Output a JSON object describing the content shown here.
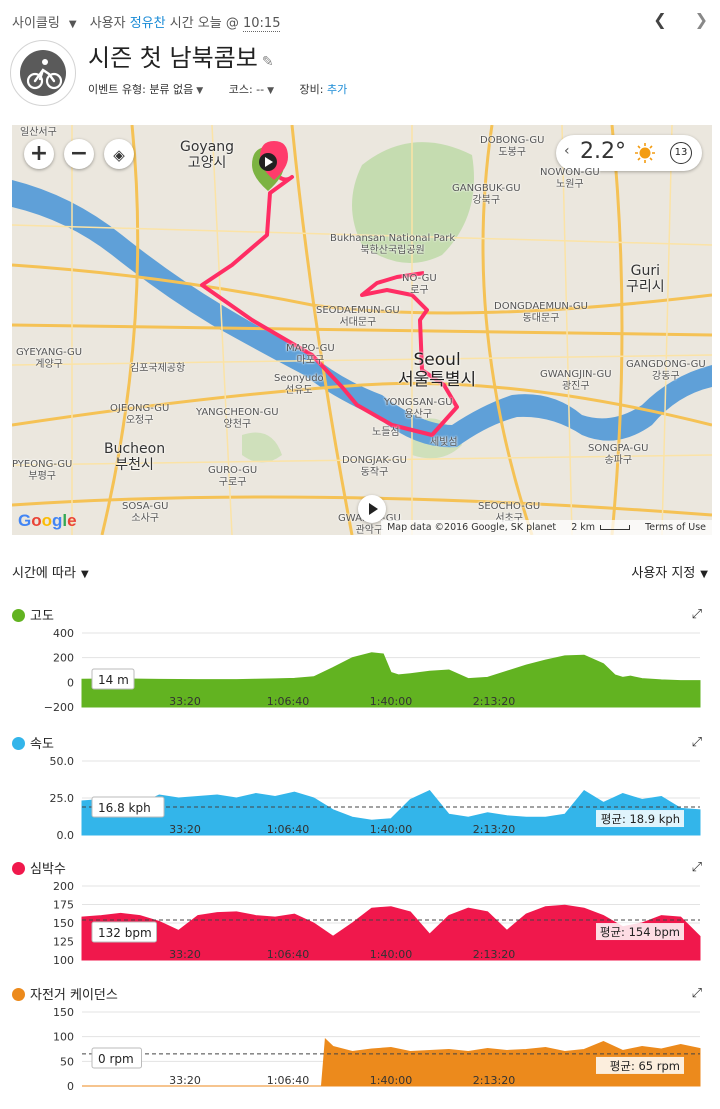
{
  "header": {
    "activity_type": "사이클링",
    "user_prefix": "사용자",
    "user_name": "정유찬",
    "time_prefix": "시간 오늘 @",
    "time": "10:15",
    "title": "시즌 첫 남북콤보",
    "event_type_label": "이벤트 유형:",
    "event_type_value": "분류 없음",
    "course_label": "코스:",
    "course_value": "--",
    "gear_label": "장비:",
    "gear_value": "추가"
  },
  "map": {
    "temperature": "2.2°",
    "wind": "13",
    "google_logo": "Google",
    "attribution": "Map data ©2016 Google, SK planet",
    "scale": "2 km",
    "terms": "Terms of Use",
    "labels": [
      {
        "text": "일산서구"
      },
      {
        "text": "Goyang\n고양시"
      },
      {
        "text": "DOBONG-GU\n도봉구"
      },
      {
        "text": "NOWON-GU\n노원구"
      },
      {
        "text": "GANGBUK-GU\n강북구"
      },
      {
        "text": "Bukhansan National Park\n북한산국립공원"
      },
      {
        "text": "NO-GU\n로구"
      },
      {
        "text": "DONGDAEMUN-GU\n동대문구"
      },
      {
        "text": "Guri\n구리시"
      },
      {
        "text": "SEODAEMUN-GU\n서대문구"
      },
      {
        "text": "GYEYANG-GU\n계양구"
      },
      {
        "text": "김포국제공항"
      },
      {
        "text": "MAPO-GU\n마포구"
      },
      {
        "text": "Seoul\n서울특별시"
      },
      {
        "text": "GWANGJIN-GU\n광진구"
      },
      {
        "text": "GANGDONG-GU\n강동구"
      },
      {
        "text": "Seonyudo\n선유도"
      },
      {
        "text": "OJEONG-GU\n오정구"
      },
      {
        "text": "YANGCHEON-GU\n양천구"
      },
      {
        "text": "YONGSAN-GU\n용산구"
      },
      {
        "text": "노들섬"
      },
      {
        "text": "세빛섬"
      },
      {
        "text": "Bucheon\n부천시"
      },
      {
        "text": "SONGPA-GU\n송파구"
      },
      {
        "text": "GURO-GU\n구로구"
      },
      {
        "text": "DONGJAK-GU\n동작구"
      },
      {
        "text": "PYEONG-GU\n부평구"
      },
      {
        "text": "SOSA-GU\n소사구"
      },
      {
        "text": "SEOCHO-GU\n서초구"
      },
      {
        "text": "GWANAK-GU\n관악구"
      }
    ]
  },
  "controls": {
    "x_axis_mode": "시간에 따라",
    "custom": "사용자 지정"
  },
  "colors": {
    "elevation": "#62b321",
    "speed": "#33b5ea",
    "heart_rate": "#f0184c",
    "cadence": "#ec8a1c",
    "route": "#ff2d64"
  },
  "chart_data": [
    {
      "type": "area",
      "title": "고도",
      "x_ticks": [
        "33:20",
        "1:06:40",
        "1:40:00",
        "2:13:20"
      ],
      "y_ticks": [
        "400",
        "200",
        "0",
        "−200"
      ],
      "ylim": [
        -200,
        400
      ],
      "readout": "14 m",
      "x": [
        0,
        10,
        20,
        30,
        40,
        45,
        50,
        55,
        60,
        65,
        70,
        75,
        78,
        80,
        82,
        85,
        90,
        95,
        100,
        105,
        110,
        115,
        120,
        125,
        130,
        135,
        138,
        140,
        142,
        145,
        150,
        155,
        160
      ],
      "values": [
        25,
        28,
        24,
        22,
        22,
        25,
        28,
        32,
        45,
        120,
        200,
        240,
        230,
        80,
        60,
        70,
        90,
        100,
        30,
        40,
        90,
        140,
        180,
        215,
        220,
        150,
        60,
        40,
        50,
        30,
        20,
        14,
        14
      ]
    },
    {
      "type": "area",
      "title": "속도",
      "x_ticks": [
        "33:20",
        "1:06:40",
        "1:40:00",
        "2:13:20"
      ],
      "y_ticks": [
        "50.0",
        "25.0",
        "0.0"
      ],
      "ylim": [
        0,
        50
      ],
      "readout": "16.8 kph",
      "average_label": "평균: 18.9 kph",
      "average": 18.9,
      "x": [
        0,
        5,
        10,
        15,
        20,
        25,
        30,
        35,
        40,
        45,
        50,
        55,
        60,
        65,
        70,
        75,
        80,
        85,
        90,
        95,
        100,
        105,
        110,
        115,
        120,
        125,
        130,
        135,
        140,
        145,
        150,
        155,
        160
      ],
      "values": [
        23,
        24,
        22,
        21,
        27,
        25,
        26,
        27,
        25,
        28,
        26,
        29,
        25,
        17,
        12,
        10,
        11,
        24,
        30,
        14,
        12,
        15,
        13,
        12,
        12,
        14,
        30,
        22,
        28,
        24,
        26,
        18,
        17
      ]
    },
    {
      "type": "area",
      "title": "심박수",
      "x_ticks": [
        "33:20",
        "1:06:40",
        "1:40:00",
        "2:13:20"
      ],
      "y_ticks": [
        "200",
        "175",
        "150",
        "125",
        "100"
      ],
      "ylim": [
        100,
        200
      ],
      "readout": "132 bpm",
      "average_label": "평균: 154 bpm",
      "average": 154,
      "x": [
        0,
        5,
        10,
        15,
        20,
        25,
        30,
        35,
        40,
        45,
        50,
        55,
        60,
        65,
        70,
        75,
        80,
        85,
        90,
        95,
        100,
        105,
        110,
        115,
        120,
        125,
        130,
        135,
        140,
        145,
        150,
        155,
        160
      ],
      "values": [
        158,
        160,
        163,
        160,
        152,
        140,
        160,
        164,
        165,
        160,
        158,
        162,
        150,
        132,
        150,
        170,
        172,
        165,
        135,
        160,
        170,
        165,
        140,
        162,
        172,
        174,
        170,
        160,
        145,
        150,
        160,
        158,
        132
      ]
    },
    {
      "type": "area",
      "title": "자전거 케이던스",
      "x_ticks": [
        "33:20",
        "1:06:40",
        "1:40:00",
        "2:13:20"
      ],
      "y_ticks": [
        "150",
        "100",
        "50",
        "0"
      ],
      "ylim": [
        0,
        150
      ],
      "readout": "0 rpm",
      "average_label": "평균: 65 rpm",
      "average": 65,
      "x": [
        0,
        62,
        63,
        65,
        70,
        75,
        80,
        85,
        90,
        95,
        100,
        105,
        110,
        115,
        120,
        125,
        130,
        135,
        140,
        145,
        150,
        155,
        160
      ],
      "values": [
        0,
        0,
        95,
        80,
        70,
        75,
        78,
        70,
        72,
        74,
        70,
        76,
        72,
        74,
        78,
        70,
        74,
        90,
        72,
        80,
        75,
        84,
        76
      ]
    }
  ]
}
